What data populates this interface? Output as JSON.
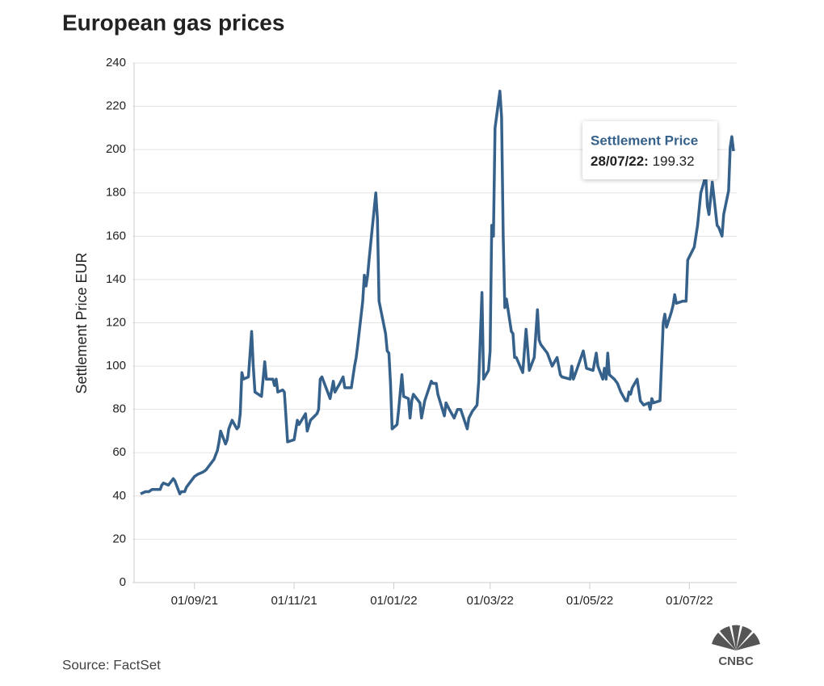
{
  "chart_data": {
    "type": "line",
    "title": "European gas prices",
    "ylabel": "Settlement Price EUR",
    "source": "Source: FactSet",
    "logo": "CNBC",
    "x": [
      "2021-07-30",
      "2021-08-02",
      "2021-08-04",
      "2021-08-06",
      "2021-08-09",
      "2021-08-11",
      "2021-08-12",
      "2021-08-13",
      "2021-08-16",
      "2021-08-18",
      "2021-08-19",
      "2021-08-20",
      "2021-08-23",
      "2021-08-24",
      "2021-08-26",
      "2021-08-27",
      "2021-08-30",
      "2021-09-01",
      "2021-09-03",
      "2021-09-06",
      "2021-09-08",
      "2021-09-10",
      "2021-09-13",
      "2021-09-14",
      "2021-09-15",
      "2021-09-16",
      "2021-09-17",
      "2021-09-20",
      "2021-09-21",
      "2021-09-22",
      "2021-09-24",
      "2021-09-27",
      "2021-09-28",
      "2021-09-29",
      "2021-09-30",
      "2021-10-01",
      "2021-10-04",
      "2021-10-06",
      "2021-10-07",
      "2021-10-08",
      "2021-10-12",
      "2021-10-14",
      "2021-10-15",
      "2021-10-19",
      "2021-10-20",
      "2021-10-21",
      "2021-10-22",
      "2021-10-25",
      "2021-10-26",
      "2021-10-28",
      "2021-11-01",
      "2021-11-03",
      "2021-11-04",
      "2021-11-08",
      "2021-11-09",
      "2021-11-11",
      "2021-11-15",
      "2021-11-16",
      "2021-11-17",
      "2021-11-18",
      "2021-11-22",
      "2021-11-23",
      "2021-11-25",
      "2021-11-26",
      "2021-11-29",
      "2021-12-01",
      "2021-12-02",
      "2021-12-06",
      "2021-12-08",
      "2021-12-09",
      "2021-12-10",
      "2021-12-13",
      "2021-12-14",
      "2021-12-15",
      "2021-12-16",
      "2021-12-17",
      "2021-12-21",
      "2021-12-22",
      "2021-12-23",
      "2021-12-27",
      "2021-12-28",
      "2021-12-29",
      "2021-12-30",
      "2021-12-31",
      "2022-01-03",
      "2022-01-04",
      "2022-01-05",
      "2022-01-06",
      "2022-01-07",
      "2022-01-10",
      "2022-01-11",
      "2022-01-12",
      "2022-01-13",
      "2022-01-17",
      "2022-01-18",
      "2022-01-20",
      "2022-01-24",
      "2022-01-25",
      "2022-01-27",
      "2022-01-28",
      "2022-02-01",
      "2022-02-02",
      "2022-02-04",
      "2022-02-07",
      "2022-02-09",
      "2022-02-11",
      "2022-02-15",
      "2022-02-16",
      "2022-02-18",
      "2022-02-21",
      "2022-02-22",
      "2022-02-24",
      "2022-02-25",
      "2022-02-28",
      "2022-03-01",
      "2022-03-02",
      "2022-03-03",
      "2022-03-04",
      "2022-03-07",
      "2022-03-08",
      "2022-03-09",
      "2022-03-10",
      "2022-03-11",
      "2022-03-14",
      "2022-03-15",
      "2022-03-16",
      "2022-03-17",
      "2022-03-21",
      "2022-03-23",
      "2022-03-24",
      "2022-03-25",
      "2022-03-28",
      "2022-03-30",
      "2022-03-31",
      "2022-04-01",
      "2022-04-05",
      "2022-04-07",
      "2022-04-08",
      "2022-04-11",
      "2022-04-13",
      "2022-04-14",
      "2022-04-19",
      "2022-04-20",
      "2022-04-21",
      "2022-04-22",
      "2022-04-27",
      "2022-04-29",
      "2022-05-03",
      "2022-05-05",
      "2022-05-06",
      "2022-05-09",
      "2022-05-10",
      "2022-05-11",
      "2022-05-12",
      "2022-05-13",
      "2022-05-16",
      "2022-05-18",
      "2022-05-20",
      "2022-05-23",
      "2022-05-24",
      "2022-05-25",
      "2022-05-26",
      "2022-05-27",
      "2022-05-30",
      "2022-06-01",
      "2022-06-03",
      "2022-06-06",
      "2022-06-07",
      "2022-06-08",
      "2022-06-09",
      "2022-06-13",
      "2022-06-15",
      "2022-06-16",
      "2022-06-17",
      "2022-06-20",
      "2022-06-21",
      "2022-06-22",
      "2022-06-23",
      "2022-06-27",
      "2022-06-29",
      "2022-06-30",
      "2022-07-04",
      "2022-07-06",
      "2022-07-08",
      "2022-07-11",
      "2022-07-12",
      "2022-07-13",
      "2022-07-15",
      "2022-07-18",
      "2022-07-19",
      "2022-07-20",
      "2022-07-21",
      "2022-07-22",
      "2022-07-25",
      "2022-07-26",
      "2022-07-27",
      "2022-07-28"
    ],
    "series": [
      {
        "name": "Settlement Price",
        "color": "#35618b",
        "values": [
          41,
          42,
          42,
          43,
          43,
          43,
          45,
          46,
          45,
          47,
          48,
          47,
          41,
          42,
          42,
          44,
          47,
          49,
          50,
          51,
          52,
          54,
          57,
          59,
          61,
          65,
          70,
          64,
          66,
          71,
          75,
          71,
          72,
          78,
          97,
          94,
          95,
          116,
          100,
          88,
          86,
          102,
          94,
          94,
          91,
          94,
          88,
          89,
          88,
          65,
          66,
          75,
          73,
          78,
          70,
          75,
          78,
          80,
          94,
          95,
          87,
          85,
          93,
          88,
          92,
          95,
          90,
          90,
          100,
          104,
          110,
          130,
          142,
          137,
          142,
          150,
          180,
          168,
          130,
          115,
          107,
          106,
          92,
          71,
          73,
          80,
          88,
          96,
          86,
          85,
          76,
          84,
          87,
          83,
          76,
          84,
          93,
          92,
          92,
          87,
          77,
          83,
          80,
          76,
          80,
          80,
          71,
          76,
          79,
          82,
          93,
          134,
          94,
          98,
          107,
          165,
          160,
          210,
          227,
          215,
          160,
          127,
          131,
          116,
          115,
          104,
          104,
          97,
          117,
          108,
          98,
          104,
          126,
          112,
          110,
          106,
          102,
          100,
          104,
          96,
          95,
          94,
          100,
          94,
          96,
          107,
          99,
          98,
          106,
          100,
          94,
          99,
          94,
          106,
          96,
          94,
          92,
          88,
          84,
          84,
          88,
          87,
          90,
          94,
          84,
          82,
          83,
          80,
          85,
          83,
          84,
          120,
          124,
          118,
          125,
          128,
          133,
          129,
          130,
          130,
          149,
          155,
          165,
          180,
          188,
          174,
          170,
          185,
          165,
          164,
          162,
          160,
          170,
          181,
          201,
          206,
          199.32
        ]
      }
    ],
    "xlim": [
      "2021-07-28",
      "2022-07-30"
    ],
    "xticks": [
      {
        "value": "2021-09-01",
        "label": "01/09/21"
      },
      {
        "value": "2021-11-01",
        "label": "01/11/21"
      },
      {
        "value": "2022-01-01",
        "label": "01/01/22"
      },
      {
        "value": "2022-03-01",
        "label": "01/03/22"
      },
      {
        "value": "2022-05-01",
        "label": "01/05/22"
      },
      {
        "value": "2022-07-01",
        "label": "01/07/22"
      }
    ],
    "ylim": [
      0,
      240
    ],
    "yticks": [
      0,
      20,
      40,
      60,
      80,
      100,
      120,
      140,
      160,
      180,
      200,
      220,
      240
    ],
    "grid": true,
    "tooltip": {
      "label": "28/07/22:"
    }
  }
}
